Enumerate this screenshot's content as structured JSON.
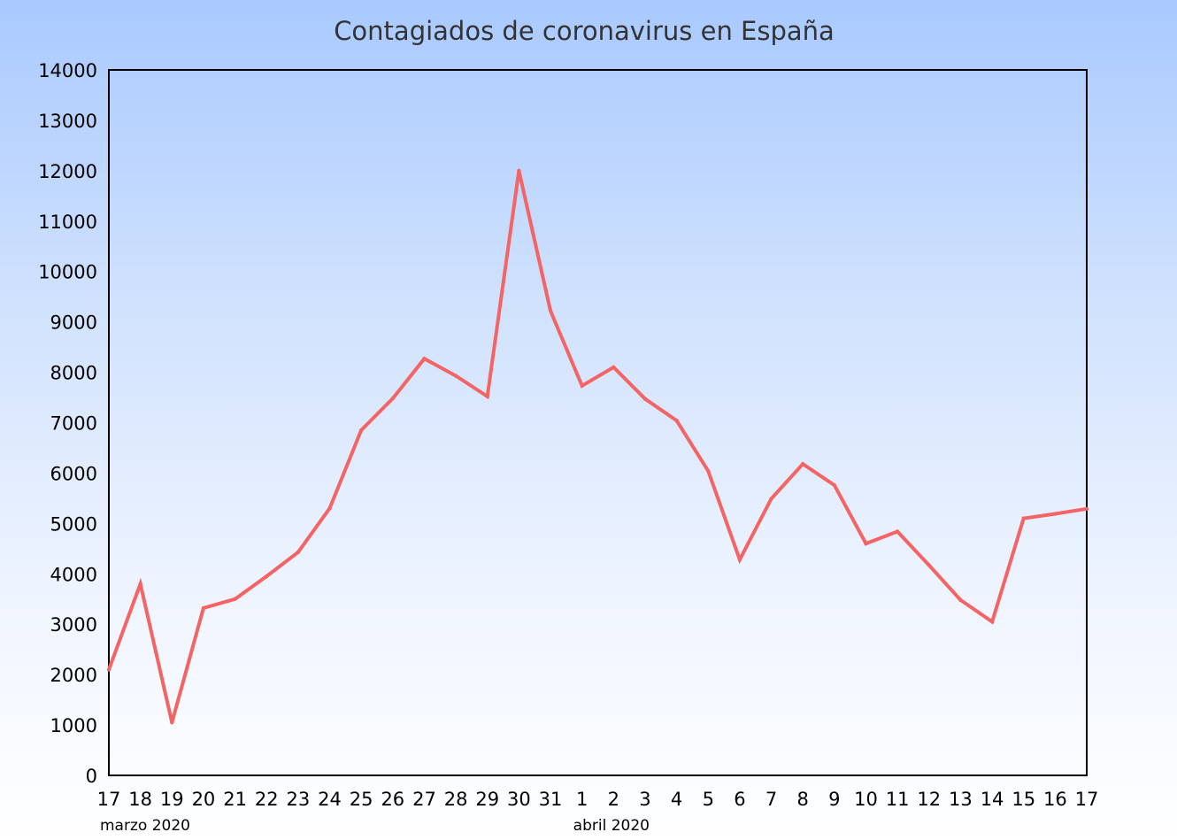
{
  "chart_data": {
    "type": "line",
    "title": "Contagiados de coronavirus en España",
    "xlabel": "",
    "ylabel": "",
    "ylim": [
      0,
      14000
    ],
    "yticks": [
      "0",
      "1000",
      "2000",
      "3000",
      "4000",
      "5000",
      "6000",
      "7000",
      "8000",
      "9000",
      "10000",
      "11000",
      "12000",
      "13000",
      "14000"
    ],
    "categories": [
      "17",
      "18",
      "19",
      "20",
      "21",
      "22",
      "23",
      "24",
      "25",
      "26",
      "27",
      "28",
      "29",
      "30",
      "31",
      "1",
      "2",
      "3",
      "4",
      "5",
      "6",
      "7",
      "8",
      "9",
      "10",
      "11",
      "12",
      "13",
      "14",
      "15",
      "16",
      "17"
    ],
    "month_labels": [
      {
        "text": "marzo 2020",
        "at_index": 0
      },
      {
        "text": "abril 2020",
        "at_index": 15
      }
    ],
    "grid": false,
    "legend": "none",
    "series": [
      {
        "color": "#f46464",
        "values": [
          2100,
          3800,
          1050,
          3320,
          3500,
          3950,
          4430,
          5300,
          6850,
          7480,
          8270,
          7930,
          7520,
          12000,
          9220,
          7730,
          8100,
          7470,
          7040,
          6040,
          4280,
          5490,
          6180,
          5760,
          4600,
          4840,
          4170,
          3480,
          3050,
          5100,
          5190,
          5290
        ]
      }
    ]
  }
}
